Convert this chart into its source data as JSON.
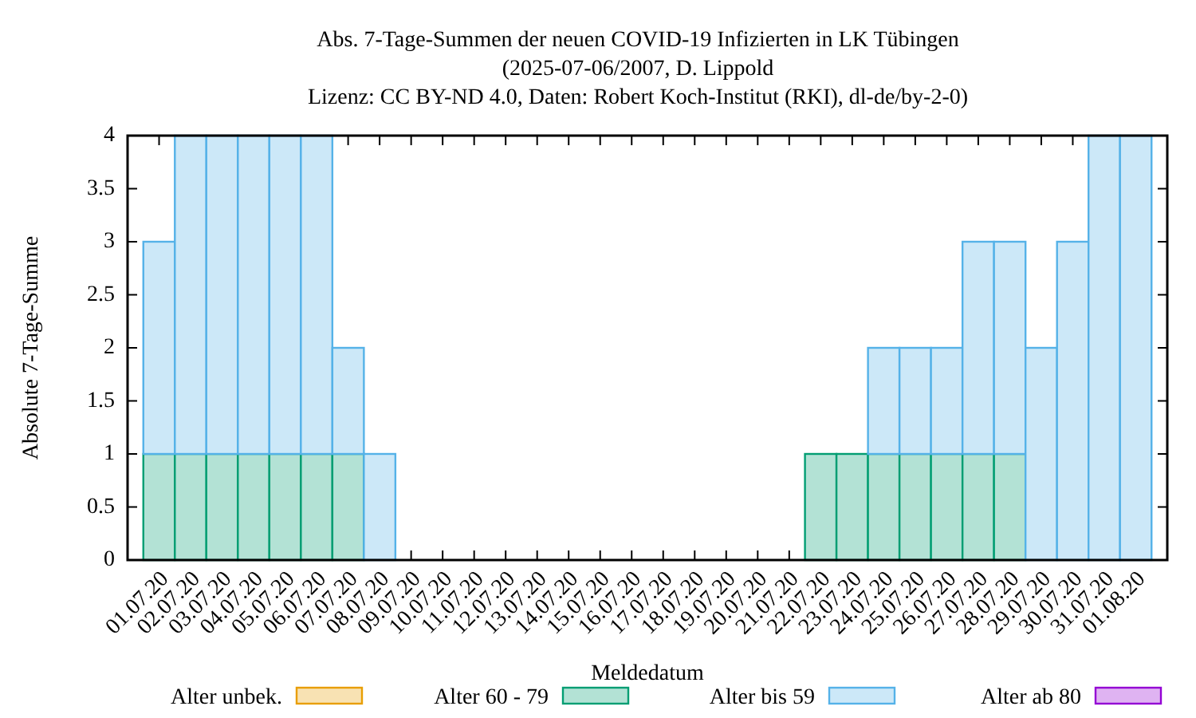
{
  "chart_data": {
    "type": "bar",
    "title": "Abs. 7-Tage-Summen der neuen COVID-19 Infizierten in LK Tübingen",
    "subtitle": "(2025-07-06/2007, D. Lippold",
    "annotations": [
      "Lizenz: CC BY-ND 4.0, Daten: Robert Koch-Institut (RKI), dl-de/by-2-0)"
    ],
    "xlabel": "Meldedatum",
    "ylabel": "Absolute 7-Tage-Summe",
    "categories": [
      "01.07.20",
      "02.07.20",
      "03.07.20",
      "04.07.20",
      "05.07.20",
      "06.07.20",
      "07.07.20",
      "08.07.20",
      "09.07.20",
      "10.07.20",
      "11.07.20",
      "12.07.20",
      "13.07.20",
      "14.07.20",
      "15.07.20",
      "16.07.20",
      "17.07.20",
      "18.07.20",
      "19.07.20",
      "20.07.20",
      "21.07.20",
      "22.07.20",
      "23.07.20",
      "24.07.20",
      "25.07.20",
      "26.07.20",
      "27.07.20",
      "28.07.20",
      "29.07.20",
      "30.07.20",
      "31.07.20",
      "01.08.20"
    ],
    "series": [
      {
        "name": "Alter unbek.",
        "color": "#f8e2b3",
        "values": [
          0,
          0,
          0,
          0,
          0,
          0,
          0,
          0,
          0,
          0,
          0,
          0,
          0,
          0,
          0,
          0,
          0,
          0,
          0,
          0,
          0,
          0,
          0,
          0,
          0,
          0,
          0,
          0,
          0,
          0,
          0,
          0
        ]
      },
      {
        "name": "Alter 60 - 79",
        "color": "#b3e2d5",
        "values": [
          1,
          1,
          1,
          1,
          1,
          1,
          1,
          0,
          0,
          0,
          0,
          0,
          0,
          0,
          0,
          0,
          0,
          0,
          0,
          0,
          0,
          1,
          1,
          1,
          1,
          1,
          1,
          1,
          0,
          0,
          0,
          0
        ]
      },
      {
        "name": "Alter bis 59",
        "color": "#cce8f8",
        "values": [
          2,
          3,
          3,
          3,
          3,
          3,
          1,
          1,
          0,
          0,
          0,
          0,
          0,
          0,
          0,
          0,
          0,
          0,
          0,
          0,
          0,
          0,
          0,
          1,
          1,
          1,
          2,
          2,
          2,
          3,
          4,
          4
        ]
      },
      {
        "name": "Alter ab 80",
        "color": "#dfb3f2",
        "values": [
          0,
          0,
          0,
          0,
          0,
          0,
          0,
          0,
          0,
          0,
          0,
          0,
          0,
          0,
          0,
          0,
          0,
          0,
          0,
          0,
          0,
          0,
          0,
          0,
          0,
          0,
          0,
          0,
          0,
          0,
          0,
          0
        ]
      }
    ],
    "stacked": true,
    "ylim": [
      0,
      4
    ],
    "yticks": [
      0,
      0.5,
      1,
      1.5,
      2,
      2.5,
      3,
      3.5,
      4
    ],
    "legend": "bottom"
  }
}
